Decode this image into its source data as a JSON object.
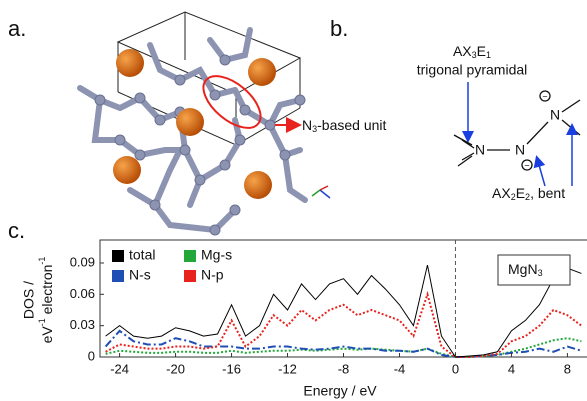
{
  "panel_a": {
    "label": "a.",
    "annotation": [
      "N",
      "3",
      "-based unit"
    ]
  },
  "panel_b": {
    "label": "b.",
    "geometry_1": [
      "AX",
      "3",
      "E",
      "1"
    ],
    "geometry_1_name": "trigonal pyramidal",
    "geometry_2": [
      "AX",
      "2",
      "E",
      "2",
      ", bent"
    ],
    "atom": "N",
    "charge": "−"
  },
  "chart_data": {
    "type": "line",
    "panel_label": "c.",
    "xlabel": "Energy / eV",
    "ylabel": {
      "line1": "DOS /",
      "line2": [
        "eV",
        "-1",
        " electron",
        "-1"
      ]
    },
    "annotation": [
      "MgN",
      "3"
    ],
    "xlim": [
      -25.4,
      9.4
    ],
    "ylim": [
      0,
      0.112
    ],
    "xticks": [
      -24,
      -20,
      -16,
      -12,
      -8,
      -4,
      0,
      4,
      8
    ],
    "yticks": [
      0,
      0.03,
      0.06,
      0.09
    ],
    "vline": 0,
    "x": [
      -25,
      -24,
      -23,
      -22,
      -21,
      -20,
      -19,
      -18,
      -17,
      -16,
      -15,
      -14,
      -13,
      -12,
      -11,
      -10,
      -9,
      -8,
      -7,
      -6,
      -5,
      -4,
      -3,
      -2,
      -1,
      0,
      1,
      2,
      3,
      4,
      5,
      6,
      7,
      8,
      9
    ],
    "series": [
      {
        "name": "total",
        "color": "#000000",
        "dash": "none",
        "values": [
          0.02,
          0.03,
          0.02,
          0.018,
          0.02,
          0.028,
          0.025,
          0.02,
          0.022,
          0.05,
          0.02,
          0.03,
          0.06,
          0.045,
          0.07,
          0.055,
          0.07,
          0.075,
          0.06,
          0.078,
          0.065,
          0.05,
          0.03,
          0.088,
          0.02,
          0,
          0.001,
          0.002,
          0.005,
          0.025,
          0.035,
          0.05,
          0.075,
          0.085,
          0.08
        ]
      },
      {
        "name": "Mg-s",
        "color": "#22a83a",
        "dash": "2 2",
        "values": [
          0.003,
          0.006,
          0.005,
          0.004,
          0.004,
          0.005,
          0.005,
          0.004,
          0.004,
          0.006,
          0.004,
          0.005,
          0.006,
          0.006,
          0.007,
          0.006,
          0.007,
          0.008,
          0.007,
          0.008,
          0.007,
          0.006,
          0.005,
          0.008,
          0.003,
          0,
          0,
          0.001,
          0.002,
          0.005,
          0.008,
          0.012,
          0.016,
          0.018,
          0.015
        ]
      },
      {
        "name": "N-s",
        "color": "#1f4fb5",
        "dash": "8 3 2 3",
        "values": [
          0.01,
          0.025,
          0.015,
          0.012,
          0.012,
          0.018,
          0.015,
          0.01,
          0.01,
          0.01,
          0.008,
          0.008,
          0.01,
          0.01,
          0.008,
          0.007,
          0.008,
          0.01,
          0.008,
          0.008,
          0.006,
          0.006,
          0.005,
          0.008,
          0.002,
          0,
          0,
          0.001,
          0.002,
          0.004,
          0.005,
          0.008,
          0.005,
          0.01,
          0.006
        ]
      },
      {
        "name": "N-p",
        "color": "#e8231d",
        "dash": "2 2",
        "values": [
          0.005,
          0.012,
          0.01,
          0.008,
          0.008,
          0.01,
          0.01,
          0.008,
          0.01,
          0.035,
          0.01,
          0.02,
          0.04,
          0.03,
          0.045,
          0.035,
          0.045,
          0.05,
          0.04,
          0.045,
          0.04,
          0.035,
          0.02,
          0.06,
          0.01,
          0,
          0,
          0.001,
          0.003,
          0.015,
          0.02,
          0.03,
          0.045,
          0.04,
          0.03
        ]
      }
    ]
  }
}
